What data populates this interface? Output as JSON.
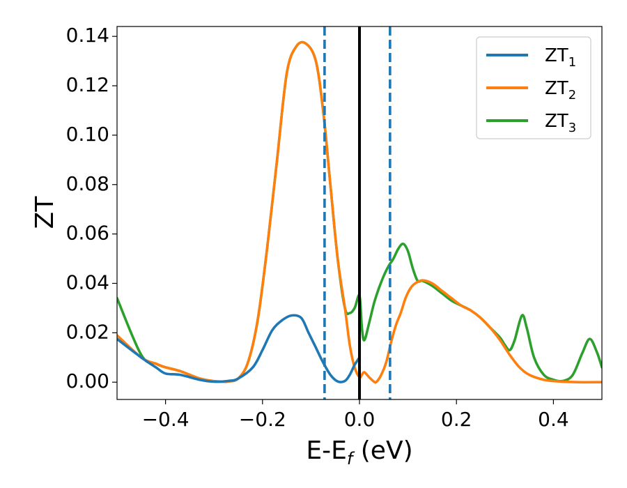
{
  "chart_data": {
    "type": "line",
    "xlabel_main": "E-E",
    "xlabel_sub": "f",
    "xlabel_unit": " (eV)",
    "ylabel": "ZT",
    "xlim": [
      -0.5,
      0.5
    ],
    "ylim": [
      -0.007,
      0.144
    ],
    "xticks": [
      -0.4,
      -0.2,
      0.0,
      0.2,
      0.4
    ],
    "xtick_labels": [
      "−0.4",
      "−0.2",
      "0.0",
      "0.2",
      "0.4"
    ],
    "yticks": [
      0.0,
      0.02,
      0.04,
      0.06,
      0.08,
      0.1,
      0.12,
      0.14
    ],
    "ytick_labels": [
      "0.00",
      "0.02",
      "0.04",
      "0.06",
      "0.08",
      "0.10",
      "0.12",
      "0.14"
    ],
    "legend_position": "top-right",
    "series": [
      {
        "name": "ZT",
        "subscript": "1",
        "color": "#1f77b4",
        "x": [
          -0.5,
          -0.45,
          -0.42,
          -0.4,
          -0.37,
          -0.33,
          -0.3,
          -0.27,
          -0.25,
          -0.22,
          -0.2,
          -0.18,
          -0.16,
          -0.14,
          -0.12,
          -0.105,
          -0.09,
          -0.075,
          -0.06,
          -0.045,
          -0.03,
          -0.02,
          -0.01,
          0.0
        ],
        "y": [
          0.0175,
          0.01,
          0.006,
          0.0035,
          0.003,
          0.001,
          0.0002,
          0.0005,
          0.0015,
          0.006,
          0.013,
          0.021,
          0.025,
          0.027,
          0.026,
          0.02,
          0.014,
          0.008,
          0.003,
          0.0003,
          0.0005,
          0.003,
          0.007,
          0.01
        ]
      },
      {
        "name": "ZT",
        "subscript": "2",
        "color": "#ff7f0e",
        "x": [
          -0.5,
          -0.45,
          -0.42,
          -0.4,
          -0.37,
          -0.33,
          -0.3,
          -0.28,
          -0.27,
          -0.25,
          -0.23,
          -0.21,
          -0.19,
          -0.17,
          -0.15,
          -0.13,
          -0.11,
          -0.09,
          -0.075,
          -0.06,
          -0.045,
          -0.03,
          -0.02,
          -0.01,
          0.0,
          0.005,
          0.01,
          0.02,
          0.03,
          0.035,
          0.045,
          0.055,
          0.065,
          0.075,
          0.085,
          0.095,
          0.105,
          0.115,
          0.13,
          0.15,
          0.17,
          0.19,
          0.21,
          0.23,
          0.25,
          0.27,
          0.29,
          0.31,
          0.33,
          0.35,
          0.38,
          0.41,
          0.45,
          0.5
        ],
        "y": [
          0.019,
          0.01,
          0.0075,
          0.006,
          0.0045,
          0.0015,
          0.0004,
          0.0002,
          0.0003,
          0.0015,
          0.008,
          0.025,
          0.055,
          0.09,
          0.125,
          0.136,
          0.137,
          0.13,
          0.11,
          0.08,
          0.05,
          0.03,
          0.015,
          0.006,
          0.002,
          0.003,
          0.004,
          0.002,
          0.0002,
          0.0001,
          0.003,
          0.008,
          0.016,
          0.023,
          0.028,
          0.034,
          0.038,
          0.04,
          0.0412,
          0.04,
          0.037,
          0.034,
          0.031,
          0.029,
          0.026,
          0.022,
          0.017,
          0.011,
          0.006,
          0.003,
          0.001,
          0.0003,
          0.0,
          0.0
        ]
      },
      {
        "name": "ZT",
        "subscript": "3",
        "color": "#2ca02c",
        "x": [
          -0.5,
          -0.45,
          -0.42,
          -0.4,
          -0.37,
          -0.33,
          -0.3,
          -0.28,
          -0.27,
          -0.25,
          -0.23,
          -0.21,
          -0.19,
          -0.17,
          -0.15,
          -0.13,
          -0.11,
          -0.09,
          -0.075,
          -0.06,
          -0.045,
          -0.03,
          -0.02,
          -0.01,
          0.0,
          0.005,
          0.01,
          0.02,
          0.03,
          0.04,
          0.05,
          0.06,
          0.07,
          0.08,
          0.09,
          0.1,
          0.11,
          0.12,
          0.13,
          0.15,
          0.17,
          0.19,
          0.21,
          0.23,
          0.25,
          0.27,
          0.29,
          0.3,
          0.31,
          0.32,
          0.335,
          0.345,
          0.36,
          0.38,
          0.4,
          0.42,
          0.44,
          0.46,
          0.475,
          0.49,
          0.5
        ],
        "y": [
          0.034,
          0.011,
          0.0075,
          0.006,
          0.0045,
          0.0015,
          0.0004,
          0.0002,
          0.0003,
          0.0015,
          0.008,
          0.025,
          0.055,
          0.09,
          0.125,
          0.136,
          0.137,
          0.13,
          0.11,
          0.08,
          0.05,
          0.03,
          0.028,
          0.03,
          0.035,
          0.022,
          0.017,
          0.024,
          0.032,
          0.038,
          0.043,
          0.047,
          0.05,
          0.054,
          0.056,
          0.053,
          0.046,
          0.041,
          0.041,
          0.039,
          0.036,
          0.033,
          0.031,
          0.029,
          0.026,
          0.022,
          0.018,
          0.015,
          0.013,
          0.017,
          0.027,
          0.022,
          0.01,
          0.003,
          0.001,
          0.0005,
          0.003,
          0.012,
          0.0175,
          0.012,
          0.006
        ]
      }
    ],
    "vlines": [
      {
        "x": -0.072,
        "style": "dashed",
        "color": "#1f77b4"
      },
      {
        "x": 0.0,
        "style": "solid",
        "color": "#000000"
      },
      {
        "x": 0.063,
        "style": "dashed",
        "color": "#1f77b4"
      }
    ]
  }
}
